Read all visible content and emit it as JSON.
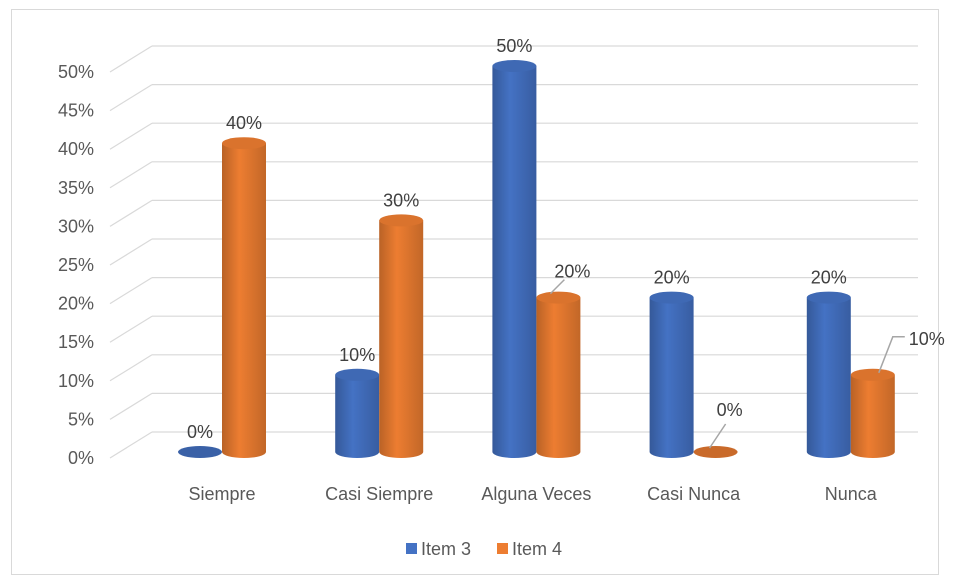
{
  "chart_data": {
    "type": "bar",
    "title": "",
    "xlabel": "",
    "ylabel": "",
    "categories": [
      "Siempre",
      "Casi Siempre",
      "Alguna Veces",
      "Casi Nunca",
      "Nunca"
    ],
    "series": [
      {
        "name": "Item 3",
        "values": [
          0,
          10,
          50,
          20,
          20
        ],
        "color": "#4472c4"
      },
      {
        "name": "Item 4",
        "values": [
          40,
          30,
          20,
          0,
          10
        ],
        "color": "#ed7d31"
      }
    ],
    "data_labels": [
      [
        "0%",
        "10%",
        "50%",
        "20%",
        "20%"
      ],
      [
        "40%",
        "30%",
        "20%",
        "0%",
        "10%"
      ]
    ],
    "ylim": [
      0,
      50
    ],
    "yticks": [
      0,
      5,
      10,
      15,
      20,
      25,
      30,
      35,
      40,
      45,
      50
    ],
    "ytick_labels": [
      "0%",
      "5%",
      "10%",
      "15%",
      "20%",
      "25%",
      "30%",
      "35%",
      "40%",
      "45%",
      "50%"
    ],
    "grid": true,
    "legend": "bottom",
    "style": "3d-cylinder"
  }
}
